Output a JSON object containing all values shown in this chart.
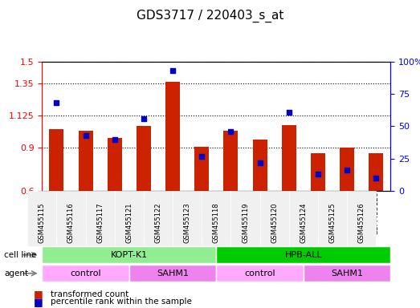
{
  "title": "GDS3717 / 220403_s_at",
  "samples": [
    "GSM455115",
    "GSM455116",
    "GSM455117",
    "GSM455121",
    "GSM455122",
    "GSM455123",
    "GSM455118",
    "GSM455119",
    "GSM455120",
    "GSM455124",
    "GSM455125",
    "GSM455126"
  ],
  "transformed_count": [
    1.03,
    1.02,
    0.97,
    1.05,
    1.36,
    0.91,
    1.02,
    0.96,
    1.06,
    0.86,
    0.9,
    0.86
  ],
  "percentile_rank": [
    68,
    43,
    40,
    56,
    93,
    27,
    46,
    22,
    61,
    13,
    16,
    10
  ],
  "ylim_left": [
    0.6,
    1.5
  ],
  "ylim_right": [
    0,
    100
  ],
  "yticks_left": [
    0.6,
    0.9,
    1.125,
    1.35,
    1.5
  ],
  "ytick_labels_left": [
    "0.6",
    "0.9",
    "1.125",
    "1.35",
    "1.5"
  ],
  "yticks_right": [
    0,
    25,
    50,
    75,
    100
  ],
  "ytick_labels_right": [
    "0",
    "25",
    "50",
    "75",
    "100%"
  ],
  "cell_line_groups": [
    {
      "label": "KOPT-K1",
      "start": 0,
      "end": 6,
      "color": "#90ee90"
    },
    {
      "label": "HPB-ALL",
      "start": 6,
      "end": 12,
      "color": "#00cc00"
    }
  ],
  "agent_groups": [
    {
      "label": "control",
      "start": 0,
      "end": 3,
      "color": "#ffaaff"
    },
    {
      "label": "SAHM1",
      "start": 3,
      "end": 6,
      "color": "#ee82ee"
    },
    {
      "label": "control",
      "start": 6,
      "end": 9,
      "color": "#ffaaff"
    },
    {
      "label": "SAHM1",
      "start": 9,
      "end": 12,
      "color": "#ee82ee"
    }
  ],
  "bar_color": "#cc2200",
  "dot_color": "#0000cc",
  "bar_bottom": 0.6,
  "legend_items": [
    {
      "label": "transformed count",
      "color": "#cc2200"
    },
    {
      "label": "percentile rank within the sample",
      "color": "#0000cc"
    }
  ],
  "grid_dotted": true,
  "background_color": "#f0f0f0"
}
